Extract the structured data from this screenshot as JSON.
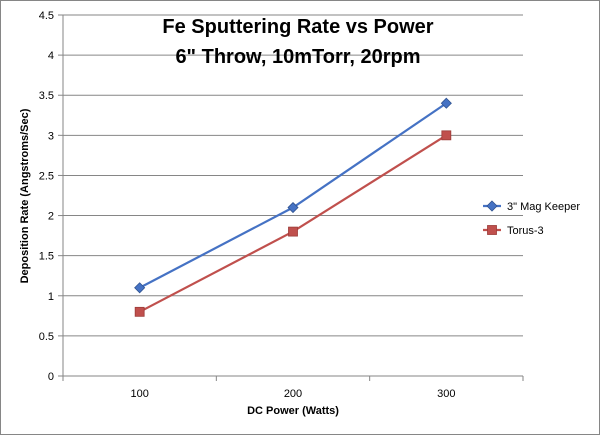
{
  "chart_data": {
    "type": "line",
    "title": "Fe Sputtering Rate vs Power",
    "subtitle": "6\" Throw, 10mTorr, 20rpm",
    "xlabel": "DC Power (Watts)",
    "ylabel": "Deposition Rate (Angstroms/Sec)",
    "categories": [
      "100",
      "200",
      "300"
    ],
    "ylim": [
      0,
      4.5
    ],
    "yticks": [
      "0",
      "0.5",
      "1",
      "1.5",
      "2",
      "2.5",
      "3",
      "3.5",
      "4",
      "4.5"
    ],
    "grid": true,
    "legend_position": "right",
    "series": [
      {
        "name": "3\" Mag Keeper",
        "values": [
          1.1,
          2.1,
          3.4
        ],
        "color": "#4572C4",
        "marker": "diamond"
      },
      {
        "name": "Torus-3",
        "values": [
          0.8,
          1.8,
          3.0
        ],
        "color": "#C0504D",
        "marker": "square"
      }
    ]
  }
}
